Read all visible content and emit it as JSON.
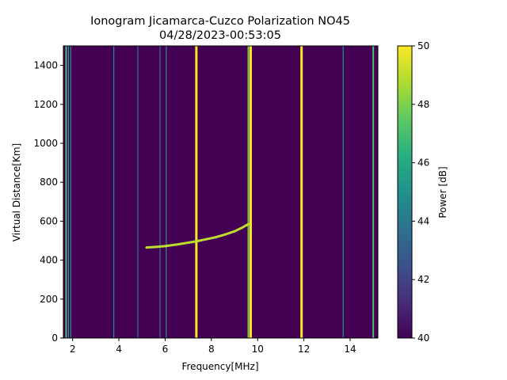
{
  "chart_data": {
    "type": "heatmap",
    "title": "Ionogram Jicamarca-Cuzco Polarization NO45",
    "subtitle": "04/28/2023-00:53:05",
    "xlabel": "Frequency[MHz]",
    "ylabel": "Virtual Distance[Km]",
    "colorbar_label": "Power [dB]",
    "xlim": [
      1.6,
      15.2
    ],
    "ylim": [
      0,
      1500
    ],
    "xticks": [
      2,
      4,
      6,
      8,
      10,
      12,
      14
    ],
    "yticks": [
      0,
      200,
      400,
      600,
      800,
      1000,
      1200,
      1400
    ],
    "clim": [
      40,
      50
    ],
    "cticks": [
      40,
      42,
      44,
      46,
      48,
      50
    ],
    "colormap": "viridis",
    "colormap_stops": [
      "#440154",
      "#472d7b",
      "#3b528b",
      "#2c728e",
      "#21918c",
      "#28ae80",
      "#5ec962",
      "#addc30",
      "#fde725"
    ],
    "background_power_db": 40,
    "vertical_interference_lines": [
      {
        "freq_mhz": 1.72,
        "power_db": 47
      },
      {
        "freq_mhz": 1.82,
        "power_db": 46
      },
      {
        "freq_mhz": 1.92,
        "power_db": 45
      },
      {
        "freq_mhz": 3.78,
        "power_db": 45
      },
      {
        "freq_mhz": 4.82,
        "power_db": 44
      },
      {
        "freq_mhz": 5.78,
        "power_db": 44
      },
      {
        "freq_mhz": 6.05,
        "power_db": 45
      },
      {
        "freq_mhz": 7.35,
        "power_db": 50
      },
      {
        "freq_mhz": 9.6,
        "power_db": 48
      },
      {
        "freq_mhz": 9.7,
        "power_db": 50
      },
      {
        "freq_mhz": 11.9,
        "power_db": 50
      },
      {
        "freq_mhz": 13.7,
        "power_db": 45
      },
      {
        "freq_mhz": 15.0,
        "power_db": 47
      }
    ],
    "ionospheric_trace": {
      "power_db": 49,
      "points": [
        {
          "x": 5.2,
          "y": 465
        },
        {
          "x": 5.6,
          "y": 468
        },
        {
          "x": 6.0,
          "y": 472
        },
        {
          "x": 6.5,
          "y": 480
        },
        {
          "x": 7.0,
          "y": 490
        },
        {
          "x": 7.4,
          "y": 498
        },
        {
          "x": 7.8,
          "y": 508
        },
        {
          "x": 8.2,
          "y": 518
        },
        {
          "x": 8.6,
          "y": 532
        },
        {
          "x": 9.0,
          "y": 548
        },
        {
          "x": 9.3,
          "y": 565
        },
        {
          "x": 9.6,
          "y": 585
        }
      ]
    }
  }
}
